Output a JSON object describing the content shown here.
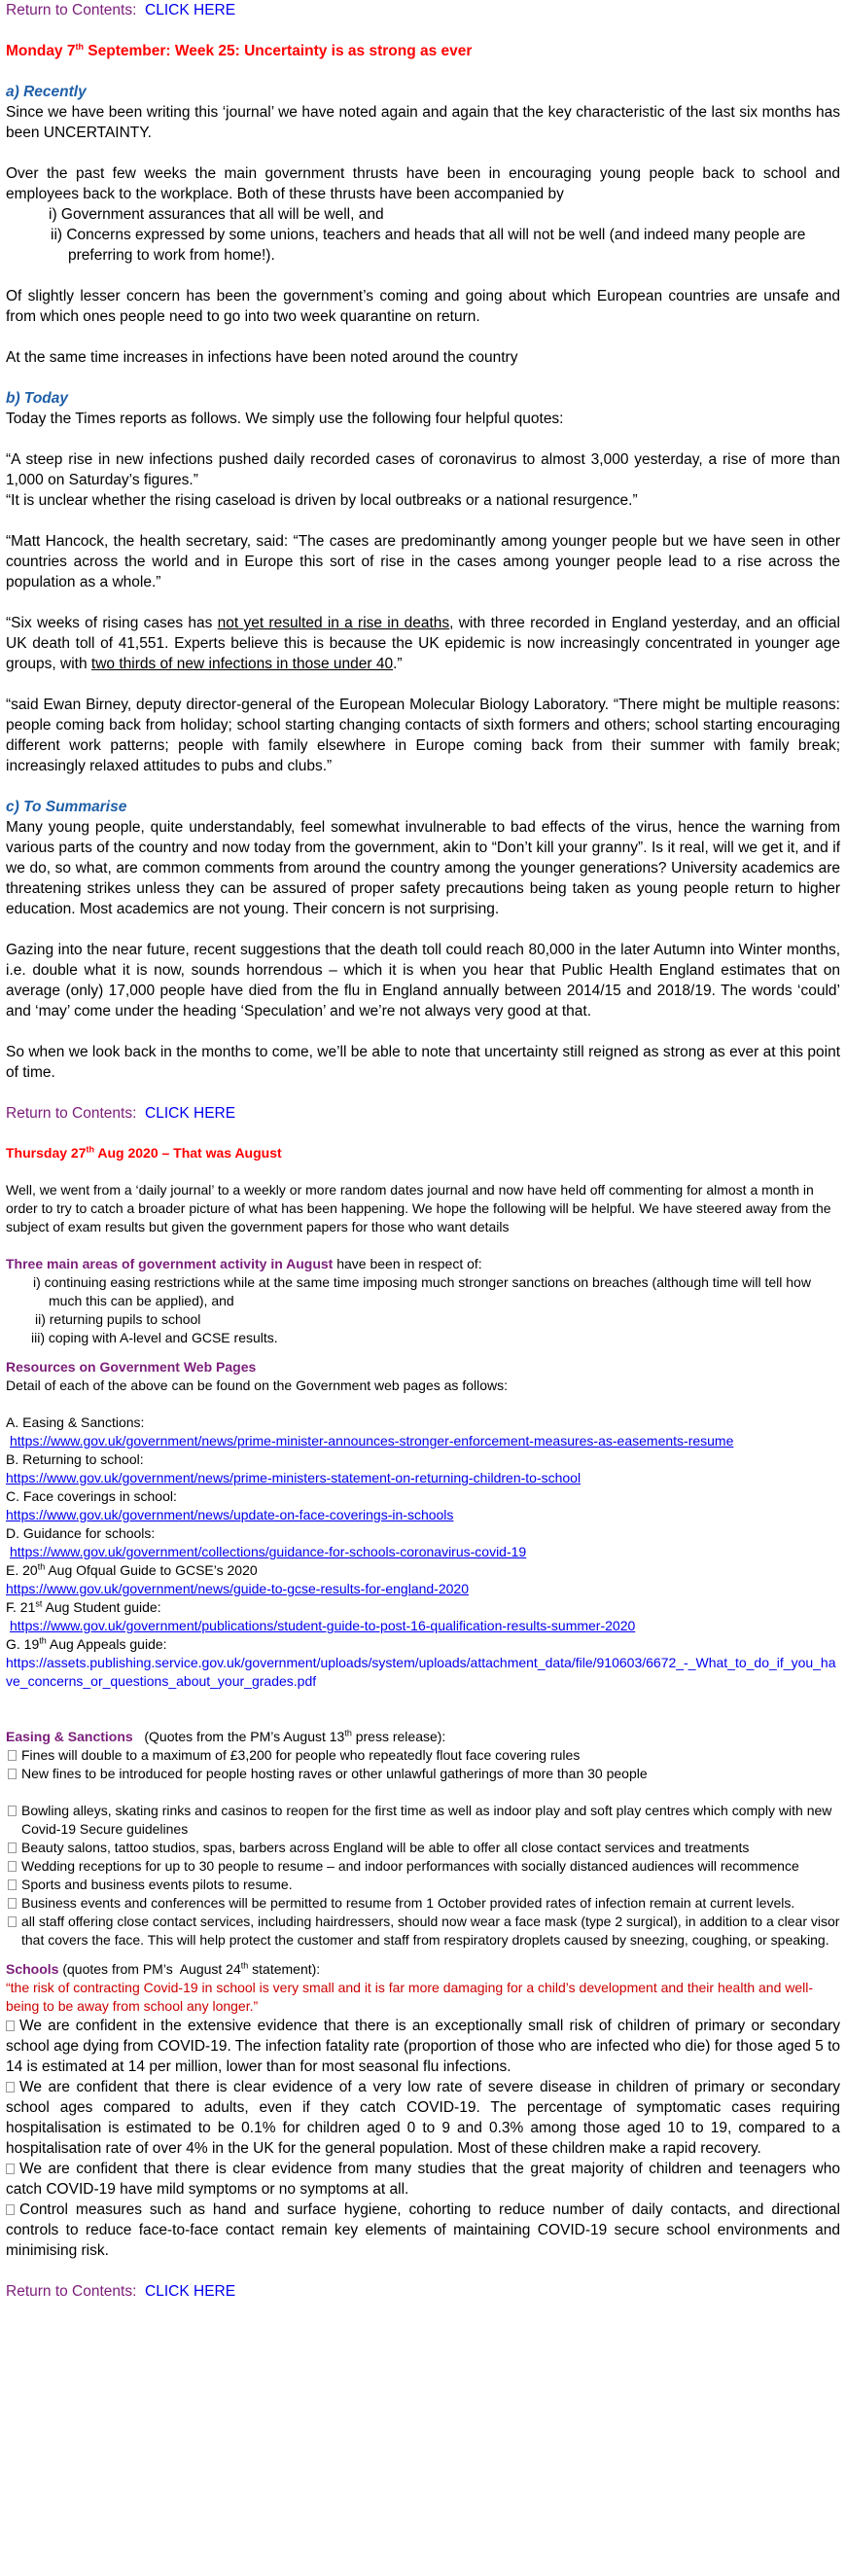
{
  "return_nav": {
    "label": "Return to Contents:",
    "link": "CLICK HERE"
  },
  "entry1": {
    "title": {
      "pre": "Monday 7",
      "sup": "th",
      "post": " September: Week 25: Uncertainty is as strong as ever"
    },
    "a": {
      "heading": "a) Recently",
      "p1": "Since we have been writing this ‘journal’ we have noted again and again that the key characteristic of the last six months has been UNCERTAINTY.",
      "p2": "Over the past few weeks the main government thrusts have been in encouraging young people back to school and employees back to the workplace. Both of these thrusts have been accompanied by",
      "list": [
        "i) Government assurances that all will be well, and",
        "ii) Concerns expressed by some unions, teachers and heads that all will not be well (and indeed many people are preferring to work from home!)."
      ],
      "p3": "Of slightly lesser concern has been the government’s coming and going about which European countries are unsafe and from which ones people need to go into two week quarantine on return.",
      "p4": "At the same time increases in infections have been noted around the country"
    },
    "b": {
      "heading": "b) Today",
      "p1": "Today the Times reports as follows. We simply use the following four helpful quotes:",
      "q1a": "“A steep rise in new infections pushed daily recorded cases of coronavirus to almost 3,000 yesterday, a rise of more than 1,000 on Saturday’s figures.”",
      "q1b": "“It is unclear whether the rising caseload is driven by local outbreaks or a national resurgence.”",
      "q2": "“Matt Hancock, the health secretary, said: “The cases are predominantly among younger people but we have seen in other countries across the world and in Europe this sort of rise in the cases among younger people lead to a rise across the population as a whole.”",
      "q3": {
        "t1": "“Six weeks of rising cases has ",
        "u1": "not yet resulted in a rise in deaths",
        "t2": ", with three recorded in England yesterday, and an official UK death toll of 41,551. Experts believe this is because the UK epidemic is now increasingly concentrated in younger age groups, with ",
        "u2": "two thirds of new infections in those under 40",
        "t3": ".”"
      },
      "q4": "“said Ewan Birney, deputy director-general of the European Molecular Biology Laboratory. “There might be multiple reasons: people coming back from holiday; school starting changing contacts of sixth formers and others; school starting encouraging different work patterns; people with family elsewhere in Europe coming back from their summer with family break; increasingly relaxed attitudes to pubs and clubs.”"
    },
    "c": {
      "heading": "c) To Summarise",
      "p1": "Many young people, quite understandably, feel somewhat invulnerable to bad effects of the virus, hence the warning from various parts of the country and now today from the government, akin to “Don’t kill your granny”. Is it real, will we get it, and if we do, so what, are common comments from around the country among the younger generations? University academics are threatening strikes unless they can be assured of proper safety precautions being taken as young people return to higher education. Most academics are not young. Their concern is not surprising.",
      "p2": "Gazing into the near future, recent suggestions that the death toll could reach 80,000 in the later Autumn into Winter months, i.e. double what it is now, sounds horrendous – which it is when you hear that Public Health England estimates that on average (only) 17,000 people have died from the flu in England annually between 2014/15 and 2018/19. The words ‘could’ and ‘may’ come under the heading ‘Speculation’ and we’re not always very good at that.",
      "p3": "So when we look back in the months to come, we’ll be able to note that uncertainty still reigned as strong as ever at this point of time."
    }
  },
  "entry2": {
    "title": {
      "pre": "Thursday 27",
      "sup": "th",
      "post": " Aug 2020 – That was August"
    },
    "intro": "Well, we went from a ‘daily journal’ to a weekly or more random dates journal and now have held off commenting for almost a month in order to try to catch a broader picture of what has been happening. We hope the following will be helpful. We have steered away from the subject of exam results but given the government papers for those who want details",
    "areas": {
      "heading": "Three main areas of government activity in August",
      "rest": " have been in respect of:",
      "list": [
        "i) continuing easing restrictions while at the same time imposing much stronger sanctions on breaches (although time will tell how much this can be applied), and",
        "ii) returning pupils to school",
        "iii) coping with A-level and GCSE results."
      ]
    },
    "resources": {
      "heading": "Resources on Government Web Pages",
      "intro": "Detail of each of the above can be found on the Government web pages as follows:",
      "a_label": "A. Easing & Sanctions:",
      "a_url": "https://www.gov.uk/government/news/prime-minister-announces-stronger-enforcement-measures-as-easements-resume",
      "b_label": "B. Returning to school:",
      "b_url": "https://www.gov.uk/government/news/prime-ministers-statement-on-returning-children-to-school",
      "c_label": "C. Face coverings in school:",
      "c_url": "https://www.gov.uk/government/news/update-on-face-coverings-in-schools",
      "d_label": "D. Guidance for schools:",
      "d_url": "https://www.gov.uk/government/collections/guidance-for-schools-coronavirus-covid-19",
      "e_pre": "E. 20",
      "e_sup": "th",
      "e_post": " Aug Ofqual Guide to GCSE’s 2020",
      "e_url": "https://www.gov.uk/government/news/guide-to-gcse-results-for-england-2020",
      "f_pre": "F. 21",
      "f_sup": "st",
      "f_post": " Aug Student guide:",
      "f_url": "https://www.gov.uk/government/publications/student-guide-to-post-16-qualification-results-summer-2020",
      "g_pre": "G. 19",
      "g_sup": "th",
      "g_post": " Aug Appeals guide:",
      "g_url": "https://assets.publishing.service.gov.uk/government/uploads/system/uploads/attachment_data/file/910603/6672_-_What_to_do_if_you_have_concerns_or_questions_about_your_grades.pdf"
    },
    "easing": {
      "heading": "Easing & Sanctions",
      "pre": "   (Quotes from the PM’s August 13",
      "sup": "th",
      "post": " press release):",
      "list1": [
        "Fines will double to a maximum of £3,200 for people who repeatedly flout face covering rules",
        "New fines to be introduced for people hosting raves or other unlawful gatherings of more than 30 people"
      ],
      "list2": [
        "Bowling alleys, skating rinks and casinos to reopen for the first time as well as indoor play and soft play centres which comply with new Covid-19 Secure guidelines",
        "Beauty salons, tattoo studios, spas, barbers across England will be able to offer all close contact services and treatments",
        "Wedding receptions for up to 30 people to resume – and indoor performances with socially distanced audiences will recommence",
        "Sports and business events pilots to resume.",
        "Business events and conferences will be permitted to resume from 1 October provided rates of infection remain at current levels.",
        "all staff offering close contact services, including hairdressers, should now wear a face mask (type 2 surgical), in addition to a clear visor that covers the face. This will help protect the customer and staff from respiratory droplets caused by sneezing, coughing, or speaking."
      ]
    },
    "schools": {
      "heading": "Schools",
      "pre": " (quotes from PM’s  August 24",
      "sup": "th",
      "post": " statement):",
      "quote": "“the risk of contracting Covid-19 in school is very small and it is far more damaging for a child’s development and their health and well-being to be away from school any longer.”",
      "list": [
        "We are confident in the extensive evidence that there is an exceptionally small risk of children of primary or secondary school age dying from COVID-19. The infection fatality rate (proportion of those who are infected who die) for those aged 5 to 14 is estimated at 14 per million, lower than for most seasonal flu infections.",
        "We are confident that there is clear evidence of a very low rate of severe disease in children of primary or secondary school ages compared to adults, even if they catch COVID-19. The percentage of symptomatic cases requiring hospitalisation is estimated to be 0.1% for children aged 0 to 9 and 0.3% among those aged 10 to 19, compared to a hospitalisation rate of over 4% in the UK for the general population. Most of these children make a rapid recovery.",
        "We are confident that there is clear evidence from many studies that the great majority of children and teenagers who catch COVID-19 have mild symptoms or no symptoms at all.",
        "Control measures such as hand and surface hygiene, cohorting to reduce number of daily contacts, and directional controls to reduce face-to-face contact remain key elements of maintaining COVID-19 secure school environments and minimising risk."
      ]
    }
  }
}
